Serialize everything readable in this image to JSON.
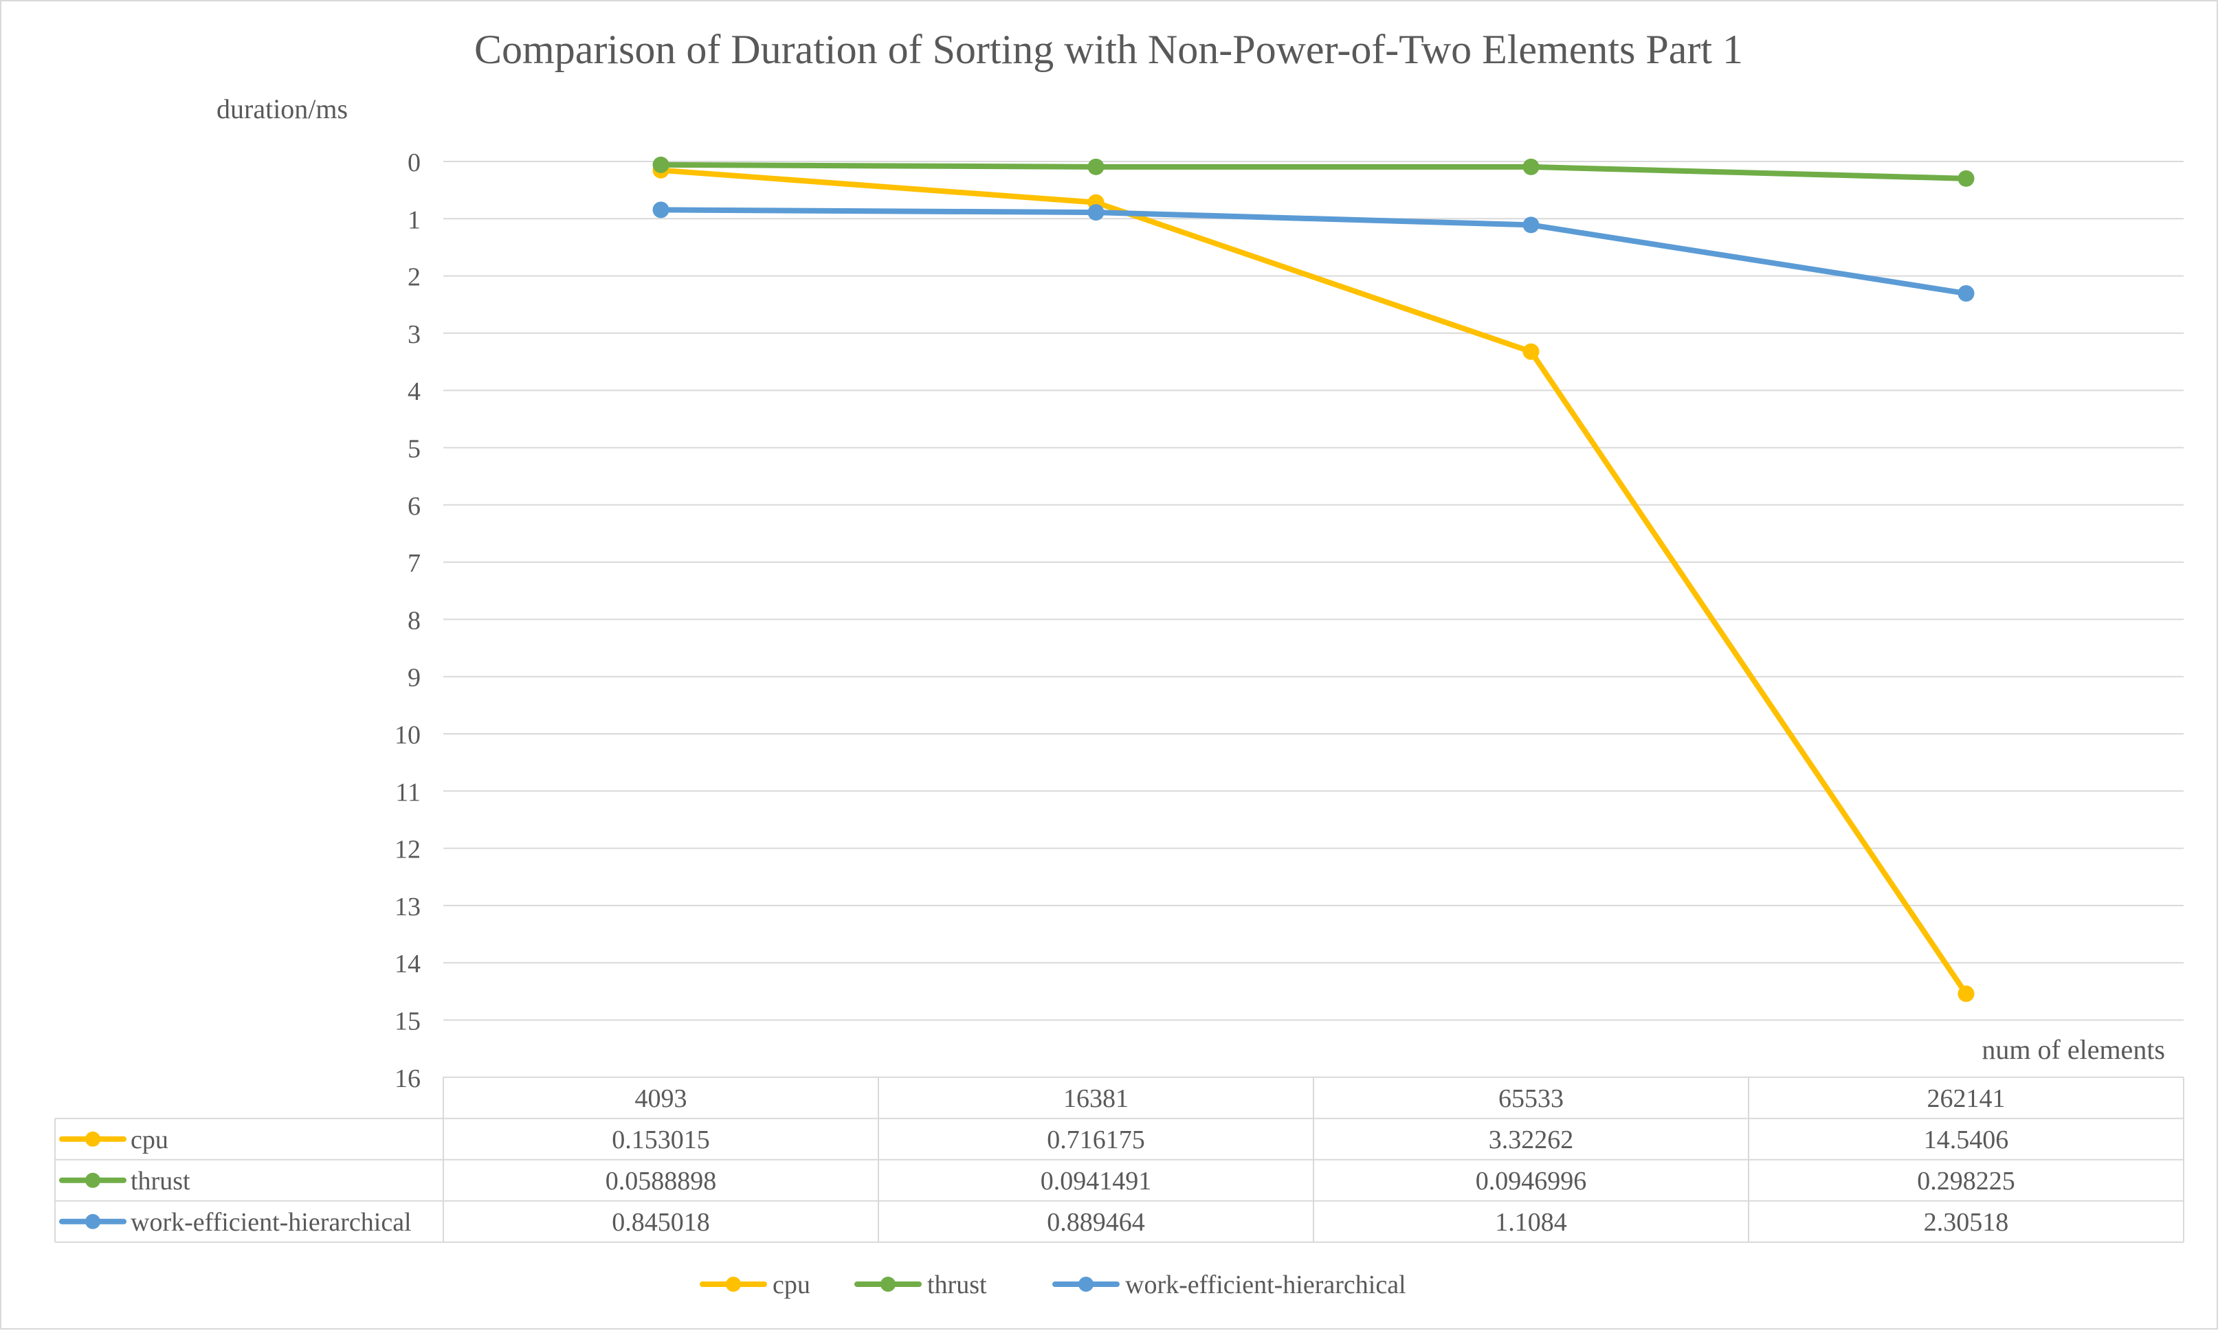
{
  "chart_data": {
    "type": "line",
    "title": "Comparison of Duration of Sorting with Non-Power-of-Two Elements Part 1",
    "ylabel": "duration/ms",
    "xlabel": "num of elements",
    "ylim": [
      0,
      16
    ],
    "y_reversed": true,
    "y_ticks": [
      0,
      1,
      2,
      3,
      4,
      5,
      6,
      7,
      8,
      9,
      10,
      11,
      12,
      13,
      14,
      15,
      16
    ],
    "grid": true,
    "legend_position": "bottom",
    "data_table": true,
    "categories": [
      "4093",
      "16381",
      "65533",
      "262141"
    ],
    "series": [
      {
        "name": "cpu",
        "color": "#FFC000",
        "values": [
          0.153015,
          0.716175,
          3.32262,
          14.5406
        ],
        "labels": [
          "0.153015",
          "0.716175",
          "3.32262",
          "14.5406"
        ]
      },
      {
        "name": "thrust",
        "color": "#70AD47",
        "values": [
          0.0588898,
          0.0941491,
          0.0946996,
          0.298225
        ],
        "labels": [
          "0.0588898",
          "0.0941491",
          "0.0946996",
          "0.298225"
        ]
      },
      {
        "name": "work-efficient-hierarchical",
        "color": "#5B9BD5",
        "values": [
          0.845018,
          0.889464,
          1.1084,
          2.30518
        ],
        "labels": [
          "0.845018",
          "0.889464",
          "1.1084",
          "2.30518"
        ]
      }
    ]
  }
}
